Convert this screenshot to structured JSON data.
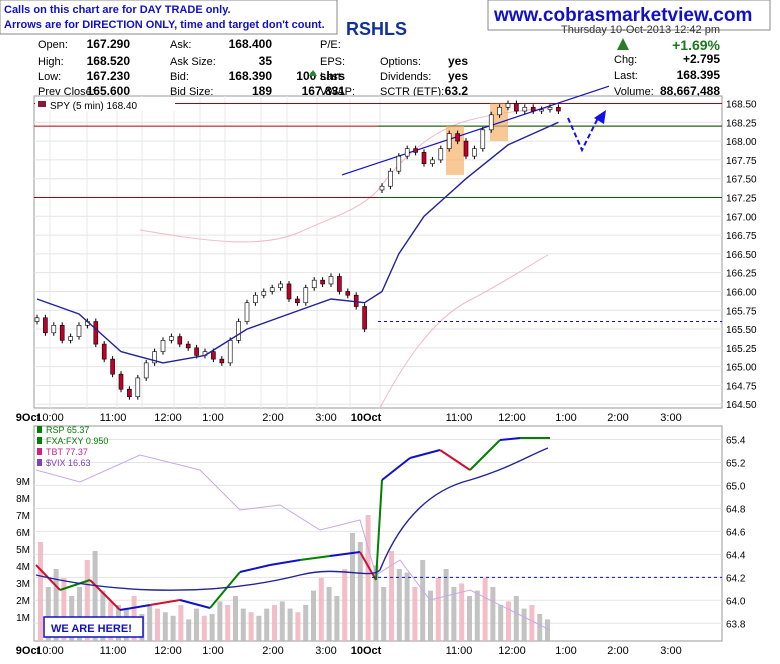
{
  "notice": {
    "line1": "Calls on this chart are for DAY TRADE only.",
    "line2": "Arrows are for DIRECTION ONLY, time and target don't count."
  },
  "website": "www.cobrasmarketview.com",
  "symbol_fragment": "RSHLS",
  "date_fragment": "Thursday  10-Oct-2013  12:42 pm",
  "quote": {
    "rows": [
      [
        "Open:",
        "167.290",
        "Ask:",
        "168.400",
        "P/E:",
        "",
        "",
        ""
      ],
      [
        "High:",
        "168.520",
        "Ask Size:",
        "35",
        "EPS:",
        "",
        "Options:",
        "yes"
      ],
      [
        "Low:",
        "167.230",
        "Bid:",
        "168.390",
        "Last:",
        "100 shrs",
        "Dividends:",
        "yes"
      ],
      [
        "Prev Close:",
        "165.600",
        "Bid Size:",
        "189",
        "VWAP:",
        "167.831",
        "SCTR (ETF):",
        "63.2"
      ]
    ],
    "change_pct": "+1.69%",
    "chg_label": "Chg:",
    "chg_value": "+2.795",
    "last_label": "Last:",
    "last_value": "168.395",
    "volume_label": "Volume:",
    "volume_value": "88,667,488"
  },
  "colors": {
    "up": "#c0002a",
    "down": "#111111",
    "ma": "#22229a",
    "band": "#f2b8c6",
    "hline_red": "#b00000",
    "hline_green": "#006a00",
    "blue": "#1010c8"
  },
  "chart_data": [
    {
      "type": "line",
      "title": "SPY (5 min) 168.40",
      "y_ticks": [
        "168.50",
        "168.25",
        "168.00",
        "167.75",
        "167.50",
        "167.25",
        "167.00",
        "166.75",
        "166.50",
        "166.25",
        "166.00",
        "165.75",
        "165.50",
        "165.25",
        "165.00",
        "164.75",
        "164.50"
      ],
      "ylim": [
        164.45,
        168.6
      ],
      "x_ticks": [
        "9Oct",
        "10:00",
        "11:00",
        "12:00",
        "1:00",
        "2:00",
        "3:00",
        "10Oct",
        "11:00",
        "12:00",
        "1:00",
        "2:00",
        "3:00"
      ],
      "series": [
        {
          "name": "price (day 1)",
          "x": [
            0,
            2,
            4,
            6,
            8,
            10,
            12,
            14,
            16,
            18,
            20,
            22,
            24,
            26,
            28,
            30,
            32,
            34,
            36,
            38,
            40,
            42,
            44,
            46,
            48,
            50,
            52,
            54,
            56,
            58,
            60,
            62,
            64,
            66,
            68,
            70,
            72,
            74,
            76,
            78
          ],
          "y": [
            165.65,
            165.45,
            165.55,
            165.35,
            165.4,
            165.55,
            165.6,
            165.3,
            165.1,
            164.9,
            164.7,
            164.6,
            164.85,
            165.05,
            165.2,
            165.35,
            165.4,
            165.3,
            165.25,
            165.15,
            165.2,
            165.1,
            165.05,
            165.35,
            165.6,
            165.85,
            165.95,
            166.0,
            166.05,
            166.1,
            165.9,
            165.85,
            166.05,
            166.15,
            166.1,
            166.2,
            166.0,
            165.95,
            165.8,
            165.5
          ]
        },
        {
          "name": "price (day 2)",
          "x": [
            80,
            82,
            84,
            86,
            88,
            90,
            92,
            94,
            96,
            98,
            100,
            102,
            104,
            106,
            108,
            110,
            112,
            114,
            116,
            118,
            120,
            122
          ],
          "y": [
            167.4,
            167.6,
            167.8,
            167.9,
            167.85,
            167.7,
            167.75,
            167.9,
            168.1,
            168.0,
            167.8,
            167.9,
            168.15,
            168.35,
            168.45,
            168.5,
            168.4,
            168.45,
            168.4,
            168.42,
            168.45,
            168.4
          ]
        },
        {
          "name": "moving average",
          "x": [
            0,
            10,
            20,
            30,
            40,
            50,
            60,
            70,
            78,
            80,
            84,
            90,
            100,
            110,
            122
          ],
          "y": [
            165.9,
            165.7,
            165.2,
            165.05,
            165.15,
            165.5,
            165.7,
            165.9,
            165.85,
            166.0,
            166.5,
            167.0,
            167.5,
            167.95,
            168.25
          ]
        }
      ],
      "levels": [
        {
          "value": 168.5,
          "color": "red"
        },
        {
          "value": 168.2,
          "color": "red"
        },
        {
          "value": 168.2,
          "color": "green",
          "from": "10Oct"
        },
        {
          "value": 167.25,
          "color": "red"
        },
        {
          "value": 167.25,
          "color": "green",
          "from": "10Oct"
        },
        {
          "value": 165.6,
          "color": "blue",
          "style": "dashed",
          "from": "10Oct"
        }
      ]
    },
    {
      "type": "line",
      "title": "RSP 65.37",
      "legend": [
        "RSP 65.37",
        "FXA:FXY 0.950",
        "TBT 77.37",
        "$VIX 16.63"
      ],
      "legend_colors": [
        "#008000",
        "#008000",
        "#d0208a",
        "#8040c0"
      ],
      "y_ticks_right": [
        "65.4",
        "65.2",
        "65.0",
        "64.8",
        "64.6",
        "64.4",
        "64.2",
        "64.0",
        "63.8"
      ],
      "y_ticks_left": [
        "9M",
        "8M",
        "7M",
        "6M",
        "5M",
        "4M",
        "3M",
        "2M",
        "1M"
      ],
      "x_ticks": [
        "9Oct",
        "10:00",
        "11:00",
        "12:00",
        "1:00",
        "2:00",
        "3:00",
        "10Oct",
        "11:00",
        "12:00",
        "1:00",
        "2:00",
        "3:00"
      ],
      "callout": "WE ARE HERE!",
      "levels": [
        {
          "value": 64.2,
          "style": "dashed"
        }
      ]
    }
  ]
}
